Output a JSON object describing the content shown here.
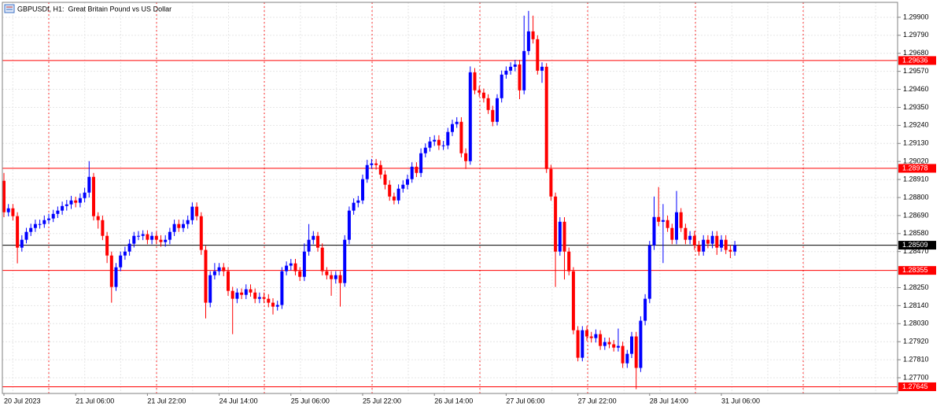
{
  "chart_data": {
    "type": "candlestick",
    "title": "GBPUSDf, H1:  Great Britain Pound vs US Dollar",
    "categories": [
      "20 Jul 2023",
      null,
      null,
      null,
      null,
      null,
      null,
      null,
      null,
      null,
      null,
      null,
      null,
      null,
      null,
      null,
      "21 Jul 06:00",
      null,
      null,
      null,
      null,
      null,
      null,
      null,
      null,
      null,
      null,
      null,
      null,
      null,
      null,
      null,
      "21 Jul 22:00",
      null,
      null,
      null,
      null,
      null,
      null,
      null,
      null,
      null,
      null,
      null,
      null,
      null,
      null,
      null,
      "24 Jul 14:00",
      null,
      null,
      null,
      null,
      null,
      null,
      null,
      null,
      null,
      null,
      null,
      null,
      null,
      null,
      null,
      "25 Jul 06:00",
      null,
      null,
      null,
      null,
      null,
      null,
      null,
      null,
      null,
      null,
      null,
      null,
      null,
      null,
      null,
      "25 Jul 22:00",
      null,
      null,
      null,
      null,
      null,
      null,
      null,
      null,
      null,
      null,
      null,
      null,
      null,
      null,
      null,
      "26 Jul 14:00",
      null,
      null,
      null,
      null,
      null,
      null,
      null,
      null,
      null,
      null,
      null,
      null,
      null,
      null,
      null,
      "27 Jul 06:00",
      null,
      null,
      null,
      null,
      null,
      null,
      null,
      null,
      null,
      null,
      null,
      null,
      null,
      null,
      null,
      "27 Jul 22:00",
      null,
      null,
      null,
      null,
      null,
      null,
      null,
      null,
      null,
      null,
      null,
      null,
      null,
      null,
      null,
      "28 Jul 14:00",
      null,
      null,
      null,
      null,
      null,
      null,
      null,
      null,
      null,
      null,
      null,
      null,
      null,
      null,
      null,
      "31 Jul 06:00",
      null,
      null,
      null
    ],
    "open": [
      1.28902,
      1.2871,
      1.28734,
      1.28686,
      1.28494,
      1.28542,
      1.2859,
      1.28614,
      1.28638,
      1.28638,
      1.28662,
      1.28672,
      1.287,
      1.2872,
      1.28748,
      1.28758,
      1.28782,
      1.28768,
      1.28796,
      1.2883,
      1.28926,
      1.28686,
      1.28662,
      1.28566,
      1.28446,
      1.28254,
      1.28374,
      1.28446,
      1.2847,
      1.28518,
      1.28566,
      1.28566,
      1.28576,
      1.28542,
      1.28566,
      1.28542,
      1.28528,
      1.28542,
      1.2859,
      1.28638,
      1.28614,
      1.28638,
      1.28662,
      1.28744,
      1.28686,
      1.2848,
      1.28158,
      1.28326,
      1.2835,
      1.28374,
      1.2835,
      1.2823,
      1.28182,
      1.2822,
      1.28206,
      1.2824,
      1.2822,
      1.28182,
      1.28192,
      1.28182,
      1.28158,
      1.28134,
      1.28144,
      1.2835,
      1.28384,
      1.28398,
      1.2835,
      1.28316,
      1.2847,
      1.28542,
      1.28566,
      1.28494,
      1.2835,
      1.28326,
      1.28302,
      1.28326,
      1.28278,
      1.28542,
      1.2872,
      1.28768,
      1.28782,
      1.28912,
      1.28998,
      1.29008,
      1.28998,
      1.2894,
      1.28878,
      1.28806,
      1.28782,
      1.28854,
      1.28878,
      1.28912,
      1.28988,
      1.2895,
      1.2907,
      1.29104,
      1.29142,
      1.29152,
      1.29118,
      1.29118,
      1.292,
      1.29248,
      1.29262,
      1.2907,
      1.29022,
      1.29564,
      1.29454,
      1.2944,
      1.29406,
      1.29334,
      1.29262,
      1.29406,
      1.2955,
      1.29574,
      1.29598,
      1.29612,
      1.29454,
      1.29694,
      1.29814,
      1.29766,
      1.29574,
      1.29598,
      1.28974,
      1.28806,
      1.2847,
      1.28652,
      1.2847,
      1.2835,
      1.2799,
      1.27822,
      1.2799,
      1.27952,
      1.27942,
      1.27966,
      1.27894,
      1.27918,
      1.27904,
      1.27884,
      1.27894,
      1.27788,
      1.27846,
      1.27952,
      1.2776,
      1.28048,
      1.28182,
      1.28508,
      1.28681,
      1.28652,
      1.28662,
      1.28614,
      1.28542,
      1.2871,
      1.28614,
      1.28542,
      1.28566,
      1.28508,
      1.2847,
      1.28542,
      1.28518,
      1.28566,
      1.28494,
      1.28542,
      1.2848,
      1.2847
    ],
    "high": [
      1.2895,
      1.2876,
      1.2876,
      1.2871,
      1.2857,
      1.28615,
      1.2864,
      1.28665,
      1.28665,
      1.2869,
      1.287,
      1.28725,
      1.28745,
      1.28775,
      1.28785,
      1.2881,
      1.28805,
      1.28825,
      1.2886,
      1.29022,
      1.2895,
      1.2871,
      1.2869,
      1.2859,
      1.2847,
      1.284,
      1.2847,
      1.285,
      1.28545,
      1.2859,
      1.28595,
      1.286,
      1.286,
      1.2859,
      1.2859,
      1.2857,
      1.2857,
      1.28615,
      1.28665,
      1.28665,
      1.28665,
      1.2869,
      1.2877,
      1.2877,
      1.2871,
      1.28505,
      1.2835,
      1.284,
      1.284,
      1.284,
      1.28375,
      1.28255,
      1.28245,
      1.28245,
      1.2827,
      1.2827,
      1.28245,
      1.2822,
      1.2822,
      1.2821,
      1.28185,
      1.2817,
      1.28375,
      1.2841,
      1.28425,
      1.28425,
      1.28375,
      1.2852,
      1.28638,
      1.28595,
      1.2859,
      1.2852,
      1.28375,
      1.2835,
      1.2835,
      1.2835,
      1.2857,
      1.28745,
      1.28795,
      1.2881,
      1.2894,
      1.2903,
      1.29035,
      1.29035,
      1.29025,
      1.28965,
      1.28905,
      1.2883,
      1.2888,
      1.28905,
      1.2894,
      1.29015,
      1.29015,
      1.291,
      1.2913,
      1.2917,
      1.2918,
      1.2918,
      1.29145,
      1.29225,
      1.29275,
      1.2929,
      1.2929,
      1.291,
      1.296,
      1.2959,
      1.2948,
      1.29465,
      1.2943,
      1.2936,
      1.2943,
      1.29575,
      1.296,
      1.29625,
      1.2964,
      1.2964,
      1.2991,
      1.29939,
      1.2991,
      1.2979,
      1.29625,
      1.2962,
      1.29,
      1.2883,
      1.2868,
      1.2868,
      1.28495,
      1.28375,
      1.28015,
      1.28015,
      1.28015,
      1.2798,
      1.27995,
      1.2799,
      1.27945,
      1.27945,
      1.2793,
      1.28,
      1.2792,
      1.2787,
      1.2798,
      1.2798,
      1.28075,
      1.2821,
      1.28535,
      1.28806,
      1.28864,
      1.2876,
      1.2869,
      1.2864,
      1.2884,
      1.28735,
      1.2864,
      1.28595,
      1.28595,
      1.28535,
      1.2857,
      1.2857,
      1.28595,
      1.28595,
      1.2857,
      1.2857,
      1.2851,
      1.28535
    ],
    "low": [
      1.2868,
      1.28685,
      1.2866,
      1.28398,
      1.2847,
      1.2852,
      1.28565,
      1.2859,
      1.2861,
      1.28615,
      1.2864,
      1.2865,
      1.28675,
      1.28695,
      1.2872,
      1.2873,
      1.2874,
      1.2874,
      1.2877,
      1.288,
      1.2866,
      1.2861,
      1.2854,
      1.284,
      1.28158,
      1.2823,
      1.2835,
      1.2842,
      1.28445,
      1.28495,
      1.2854,
      1.2854,
      1.28515,
      1.28515,
      1.28515,
      1.285,
      1.285,
      1.28515,
      1.28565,
      1.2859,
      1.2859,
      1.2861,
      1.28635,
      1.2866,
      1.2845,
      1.28062,
      1.2813,
      1.283,
      1.28325,
      1.2832,
      1.282,
      1.27966,
      1.28155,
      1.2818,
      1.2818,
      1.28195,
      1.28155,
      1.28155,
      1.28155,
      1.2813,
      1.28086,
      1.2811,
      1.2812,
      1.28325,
      1.28355,
      1.28325,
      1.2829,
      1.2829,
      1.28445,
      1.28515,
      1.2847,
      1.28325,
      1.283,
      1.282,
      1.28275,
      1.28134,
      1.28255,
      1.28515,
      1.28695,
      1.2874,
      1.2876,
      1.2889,
      1.28975,
      1.2897,
      1.28915,
      1.2885,
      1.2878,
      1.28758,
      1.2876,
      1.2883,
      1.2885,
      1.2889,
      1.28925,
      1.28925,
      1.29045,
      1.2908,
      1.29115,
      1.2909,
      1.2909,
      1.29095,
      1.29175,
      1.29225,
      1.29045,
      1.28974,
      1.29,
      1.2943,
      1.29415,
      1.2938,
      1.2931,
      1.29235,
      1.2924,
      1.2938,
      1.29525,
      1.2955,
      1.2957,
      1.294,
      1.2943,
      1.2967,
      1.2974,
      1.2955,
      1.295,
      1.2895,
      1.2878,
      1.28254,
      1.28445,
      1.283,
      1.28325,
      1.27965,
      1.278,
      1.278,
      1.27925,
      1.27915,
      1.27915,
      1.2787,
      1.2787,
      1.2788,
      1.2786,
      1.2786,
      1.2776,
      1.2776,
      1.2782,
      1.2763,
      1.27735,
      1.2802,
      1.28155,
      1.2848,
      1.28625,
      1.284,
      1.2859,
      1.28515,
      1.28515,
      1.2859,
      1.28515,
      1.28515,
      1.2848,
      1.28445,
      1.28445,
      1.2849,
      1.2849,
      1.2845,
      1.2847,
      1.28455,
      1.2843,
      1.28445
    ],
    "close": [
      1.2871,
      1.28734,
      1.28686,
      1.28494,
      1.28542,
      1.2859,
      1.28614,
      1.28638,
      1.28638,
      1.28662,
      1.28672,
      1.287,
      1.2872,
      1.28748,
      1.28758,
      1.28782,
      1.28768,
      1.28796,
      1.2883,
      1.28926,
      1.28686,
      1.28662,
      1.28566,
      1.28446,
      1.28254,
      1.28374,
      1.28446,
      1.2847,
      1.28518,
      1.28566,
      1.28566,
      1.28576,
      1.28542,
      1.28566,
      1.28542,
      1.28528,
      1.28542,
      1.2859,
      1.28638,
      1.28614,
      1.28638,
      1.28662,
      1.28744,
      1.28686,
      1.2848,
      1.28158,
      1.28326,
      1.2835,
      1.28374,
      1.2835,
      1.2823,
      1.28182,
      1.2822,
      1.28206,
      1.2824,
      1.2822,
      1.28182,
      1.28192,
      1.28182,
      1.28158,
      1.28134,
      1.28144,
      1.2835,
      1.28384,
      1.28398,
      1.2835,
      1.28316,
      1.2847,
      1.28542,
      1.28566,
      1.28494,
      1.2835,
      1.28326,
      1.28302,
      1.28326,
      1.28278,
      1.28542,
      1.2872,
      1.28768,
      1.28782,
      1.28912,
      1.28998,
      1.29008,
      1.28998,
      1.2894,
      1.28878,
      1.28806,
      1.28782,
      1.28854,
      1.28878,
      1.28912,
      1.28988,
      1.2895,
      1.2907,
      1.29104,
      1.29142,
      1.29152,
      1.29118,
      1.29118,
      1.292,
      1.29248,
      1.29262,
      1.2907,
      1.29022,
      1.29564,
      1.29454,
      1.2944,
      1.29406,
      1.29334,
      1.29262,
      1.29406,
      1.2955,
      1.29574,
      1.29598,
      1.29612,
      1.29454,
      1.29694,
      1.29814,
      1.29766,
      1.29574,
      1.29598,
      1.28974,
      1.28806,
      1.2847,
      1.28652,
      1.2847,
      1.2835,
      1.2799,
      1.27822,
      1.2799,
      1.27952,
      1.27942,
      1.27966,
      1.27894,
      1.27918,
      1.27904,
      1.27884,
      1.27894,
      1.27788,
      1.27846,
      1.27952,
      1.2776,
      1.28048,
      1.28182,
      1.28508,
      1.28681,
      1.28652,
      1.28662,
      1.28614,
      1.28542,
      1.2871,
      1.28614,
      1.28542,
      1.28566,
      1.28508,
      1.2847,
      1.28542,
      1.28518,
      1.28566,
      1.28494,
      1.28542,
      1.2848,
      1.2847,
      1.28509
    ],
    "up_color": "#0000ff",
    "down_color": "#ff0000",
    "ylim": [
      1.27604,
      1.29991
    ],
    "yticks": [
      {
        "value": 1.299,
        "label": "1.29900"
      },
      {
        "value": 1.2979,
        "label": "1.29790"
      },
      {
        "value": 1.2968,
        "label": "1.29680"
      },
      {
        "value": 1.2957,
        "label": "1.29570"
      },
      {
        "value": 1.2946,
        "label": "1.29460"
      },
      {
        "value": 1.2935,
        "label": "1.29350"
      },
      {
        "value": 1.2924,
        "label": "1.29240"
      },
      {
        "value": 1.2913,
        "label": "1.29130"
      },
      {
        "value": 1.2902,
        "label": "1.29020"
      },
      {
        "value": 1.2891,
        "label": "1.28910"
      },
      {
        "value": 1.288,
        "label": "1.28800"
      },
      {
        "value": 1.2869,
        "label": "1.28690"
      },
      {
        "value": 1.2858,
        "label": "1.28580"
      },
      {
        "value": 1.2847,
        "label": "1.28470"
      },
      {
        "value": 1.2825,
        "label": "1.28250"
      },
      {
        "value": 1.2814,
        "label": "1.28140"
      },
      {
        "value": 1.2803,
        "label": "1.28030"
      },
      {
        "value": 1.2792,
        "label": "1.27920"
      },
      {
        "value": 1.2781,
        "label": "1.27810"
      },
      {
        "value": 1.277,
        "label": "1.27700"
      }
    ],
    "grid": true,
    "levels": [
      1.29636,
      1.28978,
      1.28355,
      1.27645
    ],
    "level_color": "#ff0000",
    "current_price": 1.28509,
    "current_price_color": "#000000"
  }
}
